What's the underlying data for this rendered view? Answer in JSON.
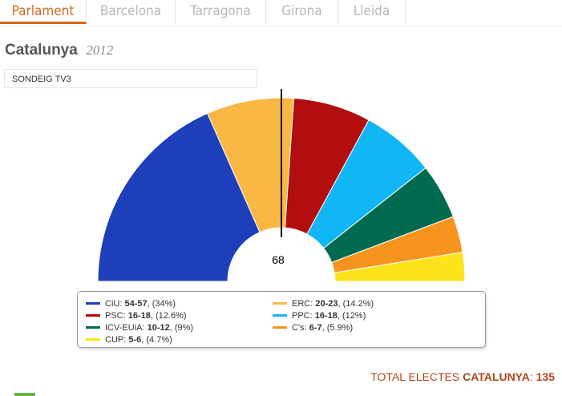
{
  "tabs": [
    {
      "label": "Parlament",
      "active": true
    },
    {
      "label": "Barcelona",
      "active": false
    },
    {
      "label": "Tarragona",
      "active": false
    },
    {
      "label": "Girona",
      "active": false
    },
    {
      "label": "Lleida",
      "active": false
    }
  ],
  "heading": {
    "title": "Catalunya",
    "year": "2012"
  },
  "source": "SONDEIG TV3",
  "chart_data": {
    "type": "pie",
    "subtype": "parliament-hemicycle",
    "total_seats": 135,
    "majority_label": "68",
    "series": [
      {
        "name": "CiU",
        "range": "54-57",
        "pct": "(34%)",
        "value": 34,
        "color": "#1e3fba"
      },
      {
        "name": "ERC",
        "range": "20-23",
        "pct": "(14.2%)",
        "value": 14.2,
        "color": "#f9b844"
      },
      {
        "name": "PSC",
        "range": "16-18",
        "pct": "(12.6%)",
        "value": 12.6,
        "color": "#b20e10"
      },
      {
        "name": "PPC",
        "range": "16-18",
        "pct": "(12%)",
        "value": 12,
        "color": "#11b6f5"
      },
      {
        "name": "ICV-EUiA",
        "range": "10-12",
        "pct": "(9%)",
        "value": 9,
        "color": "#006b4e"
      },
      {
        "name": "C's",
        "range": "6-7",
        "pct": "(5.9%)",
        "value": 5.9,
        "color": "#f7941d"
      },
      {
        "name": "CUP",
        "range": "5-6",
        "pct": "(4.7%)",
        "value": 4.7,
        "color": "#ffe31a"
      }
    ]
  },
  "footer": {
    "prefix": "TOTAL ELECTES",
    "region": "CATALUNYA",
    "sep": ":",
    "total": "135"
  }
}
